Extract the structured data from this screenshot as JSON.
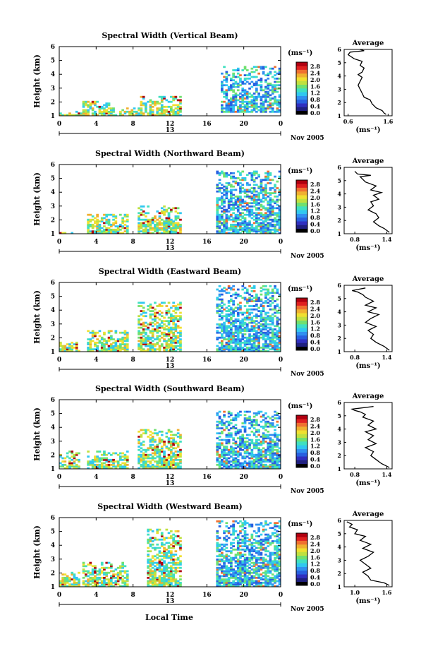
{
  "figure": {
    "xlabel": "Local Time",
    "date_label": "Nov 2005",
    "day_label": "13",
    "unit_label": "(ms⁻¹)",
    "avg_title": "Average",
    "avg_xlabel": "(ms⁻¹)",
    "ylabel": "Height (km)"
  },
  "colorbar": {
    "tick_labels": [
      "2.8",
      "2.4",
      "2.0",
      "1.6",
      "1.2",
      "0.8",
      "0.4",
      "0.0"
    ],
    "colors": [
      "#000000",
      "#202080",
      "#3030c0",
      "#2860e0",
      "#3090f0",
      "#30c8f0",
      "#40e0c0",
      "#70e070",
      "#c0e040",
      "#f0e030",
      "#f0b030",
      "#f07030",
      "#e02020",
      "#b00010"
    ]
  },
  "chart_data": [
    {
      "type": "heatmap",
      "title": "Spectral Width (Vertical Beam)",
      "x_ticks": [
        "0",
        "4",
        "8",
        "12",
        "16",
        "20",
        "0"
      ],
      "y_ticks": [
        "1",
        "2",
        "3",
        "4",
        "5",
        "6"
      ],
      "xlim": [
        0,
        24
      ],
      "ylim": [
        1,
        6
      ]
    },
    {
      "type": "line",
      "title": "Average",
      "x_ticks": [
        "0.6",
        "1.6"
      ],
      "y_ticks": [
        "1",
        "2",
        "3",
        "4",
        "5",
        "6"
      ],
      "xlim": [
        0.5,
        1.7
      ],
      "ylim": [
        1,
        6
      ],
      "x": [
        1.55,
        1.5,
        1.45,
        1.3,
        1.2,
        1.15,
        1.0,
        0.95,
        0.9,
        0.85,
        0.9,
        0.95,
        0.85,
        0.95,
        1.0,
        0.9,
        0.95,
        0.75,
        0.6,
        0.65,
        1.0,
        0.9
      ],
      "y": [
        1.1,
        1.2,
        1.4,
        1.6,
        1.9,
        2.2,
        2.4,
        2.7,
        3.0,
        3.3,
        3.6,
        3.9,
        4.1,
        4.3,
        4.6,
        4.8,
        5.1,
        5.3,
        5.6,
        5.8,
        5.9,
        6.0
      ]
    },
    {
      "type": "heatmap",
      "title": "Spectral Width (Northward Beam)",
      "x_ticks": [
        "0",
        "4",
        "8",
        "12",
        "16",
        "20",
        "0"
      ],
      "y_ticks": [
        "1",
        "2",
        "3",
        "4",
        "5",
        "6"
      ],
      "xlim": [
        0,
        24
      ],
      "ylim": [
        1,
        6
      ]
    },
    {
      "type": "line",
      "title": "Average",
      "x_ticks": [
        "0.8",
        "1.4"
      ],
      "y_ticks": [
        "1",
        "2",
        "3",
        "4",
        "5",
        "6"
      ],
      "xlim": [
        0.6,
        1.5
      ],
      "ylim": [
        1,
        6
      ],
      "x": [
        1.45,
        1.35,
        1.25,
        1.15,
        1.25,
        1.2,
        1.05,
        1.15,
        1.1,
        1.25,
        1.15,
        1.3,
        1.1,
        1.2,
        1.0,
        0.95,
        0.9,
        1.1,
        0.85,
        0.8
      ],
      "y": [
        1.1,
        1.4,
        1.6,
        1.9,
        2.2,
        2.5,
        2.8,
        3.1,
        3.4,
        3.6,
        3.9,
        4.1,
        4.3,
        4.6,
        4.9,
        5.1,
        5.3,
        5.4,
        5.5,
        5.7
      ]
    },
    {
      "type": "heatmap",
      "title": "Spectral Width (Eastward Beam)",
      "x_ticks": [
        "0",
        "4",
        "8",
        "12",
        "16",
        "20",
        "0"
      ],
      "y_ticks": [
        "1",
        "2",
        "3",
        "4",
        "5",
        "6"
      ],
      "xlim": [
        0,
        24
      ],
      "ylim": [
        1,
        6
      ]
    },
    {
      "type": "line",
      "title": "Average",
      "x_ticks": [
        "0.8",
        "1.4"
      ],
      "y_ticks": [
        "1",
        "2",
        "3",
        "4",
        "5",
        "6"
      ],
      "xlim": [
        0.6,
        1.5
      ],
      "ylim": [
        1,
        6
      ],
      "x": [
        1.45,
        1.35,
        1.2,
        1.1,
        1.15,
        1.05,
        1.2,
        1.0,
        1.1,
        1.25,
        1.05,
        1.2,
        1.0,
        1.15,
        1.0,
        0.95,
        0.85,
        0.75,
        1.0
      ],
      "y": [
        1.1,
        1.4,
        1.7,
        2.0,
        2.3,
        2.6,
        2.9,
        3.2,
        3.5,
        3.8,
        4.0,
        4.3,
        4.5,
        4.8,
        5.1,
        5.3,
        5.5,
        5.6,
        5.8
      ]
    },
    {
      "type": "heatmap",
      "title": "Spectral Width (Southward Beam)",
      "x_ticks": [
        "0",
        "4",
        "8",
        "12",
        "16",
        "20",
        "0"
      ],
      "y_ticks": [
        "1",
        "2",
        "3",
        "4",
        "5",
        "6"
      ],
      "xlim": [
        0,
        24
      ],
      "ylim": [
        1,
        6
      ]
    },
    {
      "type": "line",
      "title": "Average",
      "x_ticks": [
        "0.8",
        "1.4"
      ],
      "y_ticks": [
        "1",
        "2",
        "3",
        "4",
        "5",
        "6"
      ],
      "xlim": [
        0.6,
        1.5
      ],
      "ylim": [
        1,
        6
      ],
      "x": [
        1.45,
        1.3,
        1.2,
        1.1,
        1.15,
        1.0,
        1.2,
        1.05,
        1.15,
        1.0,
        1.2,
        1.05,
        1.15,
        0.95,
        1.0,
        0.9,
        0.8,
        0.75,
        1.15
      ],
      "y": [
        1.1,
        1.4,
        1.7,
        2.0,
        2.3,
        2.6,
        2.9,
        3.2,
        3.5,
        3.8,
        4.0,
        4.3,
        4.6,
        4.9,
        5.1,
        5.3,
        5.4,
        5.5,
        5.7
      ]
    },
    {
      "type": "heatmap",
      "title": "Spectral Width (Westward Beam)",
      "x_ticks": [
        "0",
        "4",
        "8",
        "12",
        "16",
        "20",
        "0"
      ],
      "y_ticks": [
        "1",
        "2",
        "3",
        "4",
        "5",
        "6"
      ],
      "xlim": [
        0,
        24
      ],
      "ylim": [
        1,
        6
      ]
    },
    {
      "type": "line",
      "title": "Average",
      "x_ticks": [
        "1.0",
        "1.6"
      ],
      "y_ticks": [
        "1",
        "2",
        "3",
        "4",
        "5",
        "6"
      ],
      "xlim": [
        0.8,
        1.7
      ],
      "ylim": [
        1,
        6
      ],
      "x": [
        1.65,
        1.55,
        1.3,
        1.25,
        1.15,
        1.3,
        1.2,
        1.1,
        1.25,
        1.35,
        1.15,
        1.3,
        1.1,
        1.2,
        1.0,
        1.05,
        0.9,
        0.95,
        0.85
      ],
      "y": [
        1.1,
        1.3,
        1.5,
        1.8,
        2.1,
        2.4,
        2.7,
        3.0,
        3.3,
        3.6,
        3.9,
        4.2,
        4.5,
        4.8,
        5.0,
        5.3,
        5.5,
        5.7,
        5.9
      ]
    }
  ]
}
